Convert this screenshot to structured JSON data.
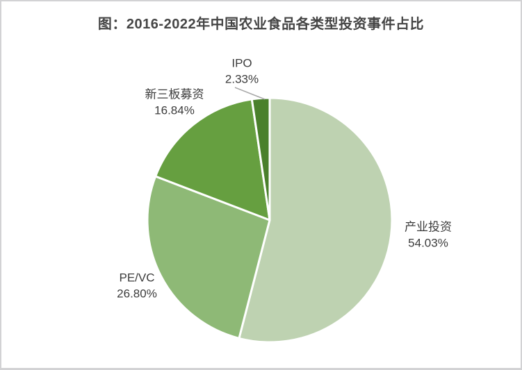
{
  "page": {
    "background_color": "#ffffff",
    "border_color": "#d2d2d4"
  },
  "header": {
    "title": "图：2016-2022年中国农业食品各类型投资事件占比",
    "title_color": "#454545"
  },
  "chart_data": {
    "type": "pie",
    "title": "图：2016-2022年中国农业食品各类型投资事件占比",
    "start_angle_deg": 0,
    "direction": "clockwise",
    "legend_position": "none",
    "label_style": "outside, category name above percent value",
    "label_color": "#3b3b3b",
    "slice_border_color": "#ffffff",
    "leader_line_color": "#a6a6a6",
    "categories": [
      "产业投资",
      "PE/VC",
      "新三板募资",
      "IPO"
    ],
    "values": [
      54.03,
      26.8,
      16.84,
      2.33
    ],
    "slices": [
      {
        "id": "industry-investment",
        "label": "产业投资",
        "value": 54.03,
        "display": "54.03%",
        "color": "#bed2b1"
      },
      {
        "id": "pe-vc",
        "label": "PE/VC",
        "value": 26.8,
        "display": "26.80%",
        "color": "#8eb976"
      },
      {
        "id": "neeq-fundraising",
        "label": "新三板募资",
        "value": 16.84,
        "display": "16.84%",
        "color": "#669f40"
      },
      {
        "id": "ipo",
        "label": "IPO",
        "value": 2.33,
        "display": "2.33%",
        "color": "#4a802c"
      }
    ]
  }
}
